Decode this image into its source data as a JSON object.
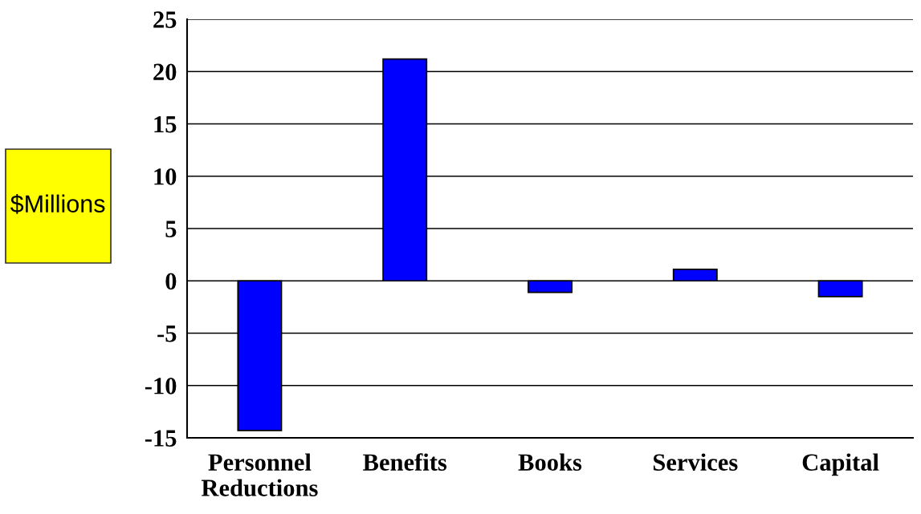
{
  "chart_data": {
    "type": "bar",
    "ylabel": "$Millions",
    "categories": [
      "Personnel\nReductions",
      "Benefits",
      "Books",
      "Services",
      "Capital"
    ],
    "values": [
      -14.3,
      21.2,
      -1.1,
      1.1,
      -1.5
    ],
    "color": "#0000ff",
    "ylim": [
      -15,
      25
    ],
    "yticks": [
      -15,
      -10,
      -5,
      0,
      5,
      10,
      15,
      20,
      25
    ],
    "grid": "y"
  }
}
